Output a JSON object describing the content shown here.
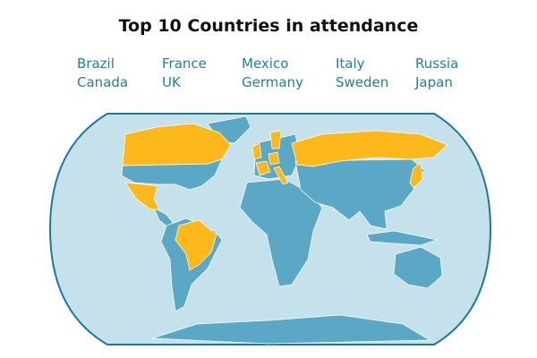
{
  "title": "Top 10 Countries in attendance",
  "countries": [
    "Brazil",
    "Canada",
    "France",
    "UK",
    "Mexico",
    "Germany",
    "Italy",
    "Sweden",
    "Russia",
    "Japan"
  ]
}
